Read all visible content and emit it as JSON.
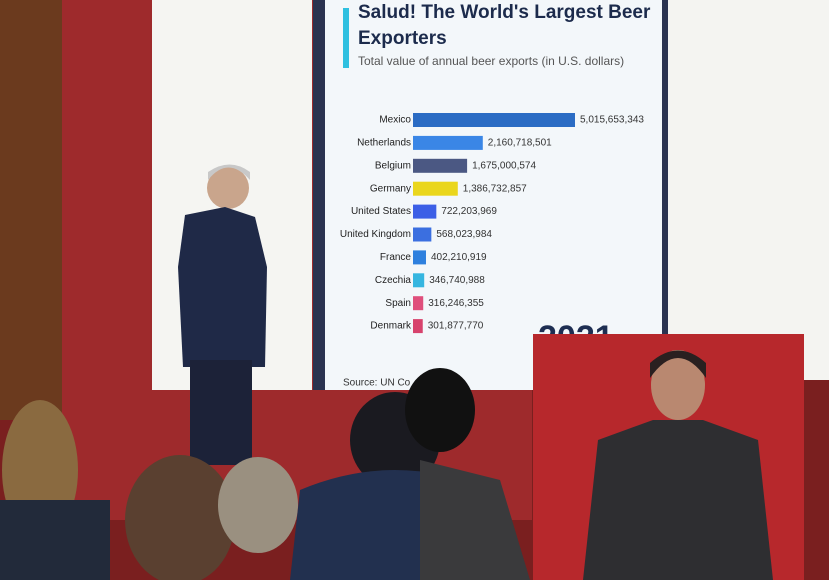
{
  "chart_data": {
    "type": "bar",
    "orientation": "horizontal",
    "title": "Salud! The World's Largest Beer Exporters",
    "subtitle": "Total value of annual beer exports (in U.S. dollars)",
    "source": "Source: UN Co",
    "year": "2021",
    "categories": [
      "Mexico",
      "Netherlands",
      "Belgium",
      "Germany",
      "United States",
      "United Kingdom",
      "France",
      "Czechia",
      "Spain",
      "Denmark"
    ],
    "values": [
      5015653343,
      2160718501,
      1675000574,
      1386732857,
      722203969,
      568023984,
      402210919,
      346740988,
      316246355,
      301877770
    ],
    "value_labels": [
      "5,015,653,343",
      "2,160,718,501",
      "1,675,000,574",
      "1,386,732,857",
      "722,203,969",
      "568,023,984",
      "402,210,919",
      "346,740,988",
      "316,246,355",
      "301,877,770"
    ],
    "colors": [
      "#2b6cc4",
      "#3a86e6",
      "#4b5883",
      "#ead61c",
      "#3c5fe6",
      "#3b6fe0",
      "#2e80de",
      "#36b6e0",
      "#df4f7c",
      "#d7436d"
    ]
  }
}
